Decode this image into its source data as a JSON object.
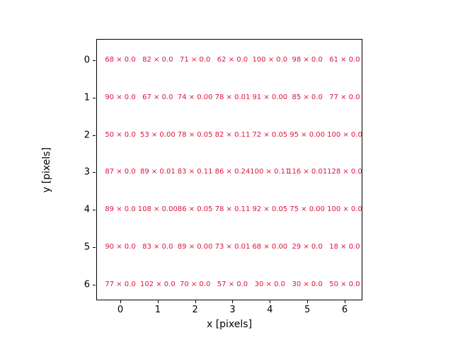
{
  "chart_data": {
    "type": "heatmap",
    "title": "",
    "xlabel": "x [pixels]",
    "ylabel": "y [pixels]",
    "x_tick_labels": [
      "0",
      "1",
      "2",
      "3",
      "4",
      "5",
      "6"
    ],
    "y_tick_labels": [
      "0",
      "1",
      "2",
      "3",
      "4",
      "5",
      "6"
    ],
    "xlim": [
      -0.65,
      6.5
    ],
    "ylim": [
      6.5,
      -0.57
    ],
    "grid": false,
    "legend_position": "none",
    "annotation_color": "#dc143c",
    "spine_color": "#000000",
    "background_color": "#ffffff",
    "annotation_format": "count × value",
    "cell_labels": [
      [
        "68 × 0.0",
        "82 × 0.0",
        "71 × 0.0",
        "62 × 0.0",
        "100 × 0.0",
        "98 × 0.0",
        "61 × 0.0"
      ],
      [
        "90 × 0.0",
        "67 × 0.0",
        "74 × 0.00",
        "78 × 0.01",
        "91 × 0.00",
        "85 × 0.0",
        "77 × 0.0"
      ],
      [
        "50 × 0.0",
        "53 × 0.00",
        "78 × 0.05",
        "82 × 0.11",
        "72 × 0.05",
        "95 × 0.00",
        "100 × 0.0"
      ],
      [
        "87 × 0.0",
        "89 × 0.01",
        "83 × 0.11",
        "86 × 0.24",
        "100 × 0.11",
        "116 × 0.01",
        "128 × 0.0"
      ],
      [
        "89 × 0.0",
        "108 × 0.00",
        "86 × 0.05",
        "78 × 0.11",
        "92 × 0.05",
        "75 × 0.00",
        "100 × 0.0"
      ],
      [
        "90 × 0.0",
        "83 × 0.0",
        "89 × 0.00",
        "73 × 0.01",
        "68 × 0.00",
        "29 × 0.0",
        "18 × 0.0"
      ],
      [
        "77 × 0.0",
        "102 × 0.0",
        "70 × 0.0",
        "57 × 0.0",
        "30 × 0.0",
        "30 × 0.0",
        "50 × 0.0"
      ]
    ],
    "counts": [
      [
        68,
        82,
        71,
        62,
        100,
        98,
        61
      ],
      [
        90,
        67,
        74,
        78,
        91,
        85,
        77
      ],
      [
        50,
        53,
        78,
        82,
        72,
        95,
        100
      ],
      [
        87,
        89,
        83,
        86,
        100,
        116,
        128
      ],
      [
        89,
        108,
        86,
        78,
        92,
        75,
        100
      ],
      [
        90,
        83,
        89,
        73,
        68,
        29,
        18
      ],
      [
        77,
        102,
        70,
        57,
        30,
        30,
        50
      ]
    ],
    "values": [
      [
        0.0,
        0.0,
        0.0,
        0.0,
        0.0,
        0.0,
        0.0
      ],
      [
        0.0,
        0.0,
        0.0,
        0.01,
        0.0,
        0.0,
        0.0
      ],
      [
        0.0,
        0.0,
        0.05,
        0.11,
        0.05,
        0.0,
        0.0
      ],
      [
        0.0,
        0.01,
        0.11,
        0.24,
        0.11,
        0.01,
        0.0
      ],
      [
        0.0,
        0.0,
        0.05,
        0.11,
        0.05,
        0.0,
        0.0
      ],
      [
        0.0,
        0.0,
        0.0,
        0.01,
        0.0,
        0.0,
        0.0
      ],
      [
        0.0,
        0.0,
        0.0,
        0.0,
        0.0,
        0.0,
        0.0
      ]
    ]
  }
}
